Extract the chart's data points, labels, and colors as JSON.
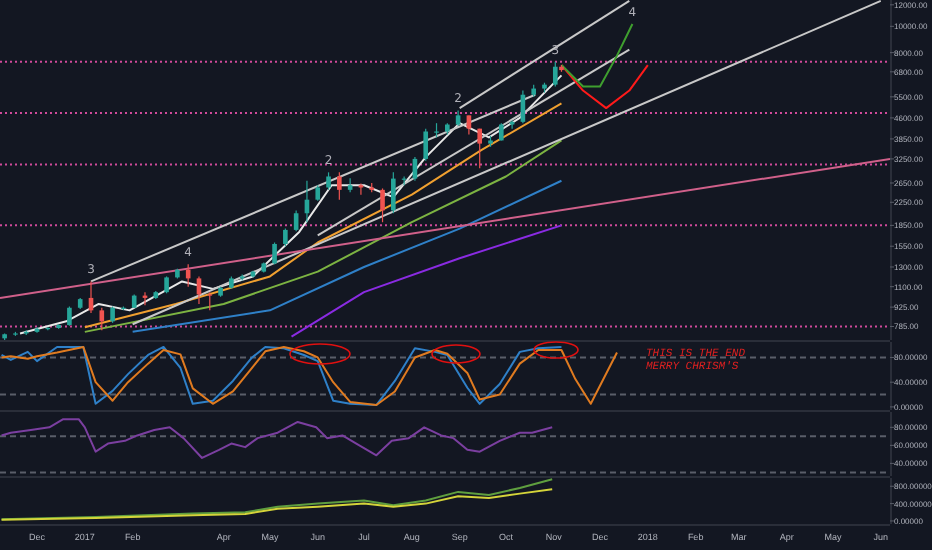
{
  "chart_data": [
    {
      "type": "candlestick",
      "log": true,
      "tick_labels": "y",
      "xlim": [
        "2016-11-07",
        "2018-06-07"
      ],
      "ylim": [
        700,
        12500
      ],
      "yticks": [
        {
          "value": 12000,
          "label": "12000.00"
        },
        {
          "value": 10000,
          "label": "10000.00"
        },
        {
          "value": 8000,
          "label": "8000.00"
        },
        {
          "value": 6800,
          "label": "6800.00"
        },
        {
          "value": 5500,
          "label": "5500.00"
        },
        {
          "value": 4600,
          "label": "4600.00"
        },
        {
          "value": 3850,
          "label": "3850.00"
        },
        {
          "value": 3250,
          "label": "3250.00"
        },
        {
          "value": 2650,
          "label": "2650.00"
        },
        {
          "value": 2250,
          "label": "2250.00"
        },
        {
          "value": 1850,
          "label": "1850.00"
        },
        {
          "value": 1550,
          "label": "1550.00"
        },
        {
          "value": 1300,
          "label": "1300.00"
        },
        {
          "value": 1100,
          "label": "1100.00"
        },
        {
          "value": 925,
          "label": "925.00"
        },
        {
          "value": 785,
          "label": "785.00"
        }
      ],
      "x": [
        "2016-11-10",
        "2016-11-17",
        "2016-11-24",
        "2016-12-01",
        "2016-12-08",
        "2016-12-15",
        "2016-12-22",
        "2016-12-29",
        "2017-01-05",
        "2017-01-12",
        "2017-01-19",
        "2017-01-26",
        "2017-02-02",
        "2017-02-09",
        "2017-02-16",
        "2017-02-23",
        "2017-03-02",
        "2017-03-09",
        "2017-03-16",
        "2017-03-23",
        "2017-03-30",
        "2017-04-06",
        "2017-04-13",
        "2017-04-20",
        "2017-04-27",
        "2017-05-04",
        "2017-05-11",
        "2017-05-18",
        "2017-05-25",
        "2017-06-01",
        "2017-06-08",
        "2017-06-15",
        "2017-06-22",
        "2017-06-29",
        "2017-07-06",
        "2017-07-13",
        "2017-07-20",
        "2017-07-27",
        "2017-08-03",
        "2017-08-10",
        "2017-08-17",
        "2017-08-24",
        "2017-08-31",
        "2017-09-07",
        "2017-09-14",
        "2017-09-21",
        "2017-09-28",
        "2017-10-05",
        "2017-10-12",
        "2017-10-19",
        "2017-10-26",
        "2017-11-02",
        "2017-11-06"
      ],
      "ohlc": [
        [
          710,
          740,
          700,
          735
        ],
        [
          735,
          750,
          725,
          740
        ],
        [
          740,
          760,
          730,
          750
        ],
        [
          750,
          780,
          745,
          770
        ],
        [
          770,
          780,
          760,
          775
        ],
        [
          775,
          800,
          770,
          795
        ],
        [
          795,
          930,
          790,
          920
        ],
        [
          920,
          1000,
          910,
          990
        ],
        [
          1000,
          1150,
          880,
          900
        ],
        [
          900,
          920,
          760,
          820
        ],
        [
          820,
          930,
          810,
          920
        ],
        [
          920,
          930,
          900,
          920
        ],
        [
          920,
          1030,
          920,
          1020
        ],
        [
          1020,
          1050,
          940,
          1000
        ],
        [
          1000,
          1060,
          990,
          1050
        ],
        [
          1050,
          1200,
          1040,
          1190
        ],
        [
          1190,
          1280,
          1180,
          1270
        ],
        [
          1270,
          1330,
          1100,
          1180
        ],
        [
          1180,
          1200,
          950,
          1030
        ],
        [
          1030,
          1050,
          900,
          1020
        ],
        [
          1020,
          1100,
          1010,
          1090
        ],
        [
          1090,
          1200,
          1080,
          1180
        ],
        [
          1180,
          1220,
          1160,
          1200
        ],
        [
          1200,
          1260,
          1190,
          1250
        ],
        [
          1250,
          1350,
          1240,
          1340
        ],
        [
          1340,
          1600,
          1330,
          1580
        ],
        [
          1580,
          1800,
          1550,
          1780
        ],
        [
          1780,
          2100,
          1760,
          2050
        ],
        [
          2050,
          2700,
          1900,
          2300
        ],
        [
          2300,
          2600,
          2280,
          2550
        ],
        [
          2550,
          2900,
          2500,
          2800
        ],
        [
          2800,
          2900,
          2300,
          2500
        ],
        [
          2500,
          2760,
          2450,
          2600
        ],
        [
          2600,
          2640,
          2400,
          2550
        ],
        [
          2550,
          2650,
          2450,
          2500
        ],
        [
          2500,
          2530,
          1900,
          2100
        ],
        [
          2100,
          2900,
          2050,
          2750
        ],
        [
          2750,
          2800,
          2600,
          2750
        ],
        [
          2750,
          3300,
          2700,
          3250
        ],
        [
          3250,
          4200,
          3200,
          4100
        ],
        [
          4100,
          4400,
          3900,
          4100
        ],
        [
          4100,
          4400,
          4000,
          4350
        ],
        [
          4350,
          4900,
          4300,
          4700
        ],
        [
          4700,
          4700,
          4000,
          4200
        ],
        [
          4200,
          4200,
          3000,
          3700
        ],
        [
          3700,
          3950,
          3600,
          3800
        ],
        [
          3800,
          4400,
          3800,
          4350
        ],
        [
          4350,
          4500,
          4200,
          4450
        ],
        [
          4450,
          5800,
          4400,
          5600
        ],
        [
          5600,
          6100,
          5500,
          5900
        ],
        [
          5900,
          6200,
          5700,
          6100
        ],
        [
          6100,
          7400,
          6000,
          7100
        ],
        [
          7100,
          7200,
          6800,
          6900
        ]
      ],
      "series": [
        {
          "type": "line",
          "color": "#e8e8e8",
          "x": [
            "2016-11-20",
            "2016-12-20",
            "2017-01-10",
            "2017-01-30",
            "2017-03-05",
            "2017-03-25",
            "2017-04-20",
            "2017-05-20",
            "2017-06-10",
            "2017-07-01",
            "2017-07-20",
            "2017-08-10",
            "2017-09-01",
            "2017-09-20",
            "2017-10-10",
            "2017-11-06"
          ],
          "values": [
            740,
            820,
            950,
            900,
            1150,
            1080,
            1200,
            1750,
            2600,
            2600,
            2350,
            3300,
            4400,
            3900,
            4600,
            6600
          ]
        },
        {
          "type": "line",
          "color": "#f0a030",
          "x": [
            "2017-01-01",
            "2017-03-01",
            "2017-05-01",
            "2017-06-01",
            "2017-08-01",
            "2017-09-15",
            "2017-11-06"
          ],
          "values": [
            780,
            950,
            1200,
            1600,
            2400,
            3500,
            5200
          ]
        },
        {
          "type": "line",
          "color": "#7cb342",
          "x": [
            "2017-01-01",
            "2017-04-01",
            "2017-06-01",
            "2017-08-01",
            "2017-10-01",
            "2017-11-06"
          ],
          "values": [
            750,
            950,
            1250,
            1900,
            2800,
            3800
          ]
        },
        {
          "type": "line",
          "color": "#2f80c8",
          "x": [
            "2017-02-01",
            "2017-05-01",
            "2017-07-01",
            "2017-09-01",
            "2017-11-06"
          ],
          "values": [
            750,
            900,
            1300,
            1800,
            2700
          ]
        },
        {
          "type": "line",
          "color": "#8a2be2",
          "x": [
            "2017-05-15",
            "2017-07-01",
            "2017-09-01",
            "2017-11-06"
          ],
          "values": [
            720,
            1050,
            1400,
            1850
          ]
        },
        {
          "type": "line",
          "color": "#c8c8c8",
          "x": [
            "2017-01-05",
            "2017-10-20"
          ],
          "values": [
            1150,
            5600
          ]
        },
        {
          "type": "line",
          "color": "#c8c8c8",
          "x": [
            "2017-09-01",
            "2017-12-20"
          ],
          "values": [
            5000,
            12400
          ]
        },
        {
          "type": "line",
          "color": "#c8c8c8",
          "x": [
            "2017-06-01",
            "2017-12-20"
          ],
          "values": [
            1700,
            8200
          ]
        },
        {
          "type": "line",
          "color": "#c8c8c8",
          "x": [
            "2017-02-01",
            "2018-06-01"
          ],
          "values": [
            800,
            12400
          ]
        },
        {
          "type": "line",
          "color": "#d0608a",
          "x": [
            "2016-11-07",
            "2018-06-07"
          ],
          "values": [
            1000,
            3250
          ]
        },
        {
          "type": "line",
          "color": "#ff1a1a",
          "x": [
            "2017-11-06",
            "2017-11-20",
            "2017-12-05",
            "2017-12-20",
            "2018-01-01"
          ],
          "values": [
            7200,
            5800,
            5000,
            5800,
            7200
          ]
        },
        {
          "type": "line",
          "color": "#3f9f2f",
          "x": [
            "2017-11-06",
            "2017-11-20",
            "2017-12-01",
            "2017-12-12",
            "2017-12-22"
          ],
          "values": [
            7200,
            6000,
            6000,
            7800,
            10200
          ]
        }
      ],
      "ref_lines": [
        {
          "axis": "y",
          "value": 7400,
          "color": "#d04a9a",
          "line_style": "dotted"
        },
        {
          "axis": "y",
          "value": 4800,
          "color": "#d04a9a",
          "line_style": "dotted"
        },
        {
          "axis": "y",
          "value": 3100,
          "color": "#d04a9a",
          "line_style": "dotted"
        },
        {
          "axis": "y",
          "value": 1850,
          "color": "#d04a9a",
          "line_style": "dotted"
        },
        {
          "axis": "y",
          "value": 785,
          "color": "#d04a9a",
          "line_style": "dotted"
        }
      ],
      "annotations": [
        {
          "text": "3",
          "x": "2017-01-05",
          "y": 1150
        },
        {
          "text": "4",
          "x": "2017-03-09",
          "y": 1330
        },
        {
          "text": "2",
          "x": "2017-06-08",
          "y": 2900
        },
        {
          "text": "2",
          "x": "2017-08-31",
          "y": 4900
        },
        {
          "text": "3",
          "x": "2017-11-02",
          "y": 7400
        },
        {
          "text": "4",
          "x": "2017-12-22",
          "y": 10200
        }
      ]
    },
    {
      "type": "line",
      "tick_labels": "y",
      "xlim": [
        "2016-11-07",
        "2018-06-07"
      ],
      "ylim": [
        -5,
        105
      ],
      "yticks": [
        {
          "value": 80,
          "label": "80.00000"
        },
        {
          "value": 40,
          "label": "40.00000"
        },
        {
          "value": 0,
          "label": "0.00000"
        }
      ],
      "ref_lines": [
        {
          "axis": "y",
          "value": 80,
          "color": "#5a5e69",
          "line_style": "dashed"
        },
        {
          "axis": "y",
          "value": 20,
          "color": "#5a5e69",
          "line_style": "dashed"
        }
      ],
      "series": [
        {
          "color": "#2f80c8",
          "x": [
            "2016-11-08",
            "2016-11-14",
            "2016-11-25",
            "2016-12-01",
            "2016-12-14",
            "2016-12-31",
            "2017-01-08",
            "2017-01-19",
            "2017-01-29",
            "2017-02-11",
            "2017-02-21",
            "2017-03-04",
            "2017-03-12",
            "2017-03-25",
            "2017-04-07",
            "2017-04-19",
            "2017-04-28",
            "2017-05-10",
            "2017-05-23",
            "2017-06-01",
            "2017-06-11",
            "2017-06-22",
            "2017-07-09",
            "2017-07-21",
            "2017-08-03",
            "2017-08-16",
            "2017-08-24",
            "2017-09-06",
            "2017-09-14",
            "2017-09-27",
            "2017-10-10",
            "2017-10-22",
            "2017-11-06"
          ],
          "values": [
            84,
            76,
            89,
            74,
            97,
            97,
            5,
            26,
            53,
            84,
            97,
            63,
            5,
            10,
            42,
            79,
            97,
            95,
            84,
            74,
            10,
            5,
            3,
            42,
            95,
            89,
            84,
            31,
            5,
            37,
            89,
            95,
            97
          ]
        },
        {
          "color": "#e07b20",
          "x": [
            "2016-11-08",
            "2016-11-14",
            "2016-11-25",
            "2016-12-01",
            "2016-12-14",
            "2016-12-31",
            "2017-01-08",
            "2017-01-19",
            "2017-01-29",
            "2017-02-11",
            "2017-02-21",
            "2017-03-04",
            "2017-03-12",
            "2017-03-25",
            "2017-04-07",
            "2017-04-19",
            "2017-04-28",
            "2017-05-10",
            "2017-05-23",
            "2017-06-01",
            "2017-06-11",
            "2017-06-22",
            "2017-07-09",
            "2017-07-21",
            "2017-08-03",
            "2017-08-16",
            "2017-08-24",
            "2017-09-06",
            "2017-09-14",
            "2017-09-27",
            "2017-10-10",
            "2017-10-22",
            "2017-11-06",
            "2017-11-15",
            "2017-11-25",
            "2017-12-12"
          ],
          "values": [
            80,
            82,
            78,
            82,
            88,
            97,
            40,
            10,
            40,
            70,
            92,
            85,
            30,
            5,
            25,
            62,
            90,
            97,
            90,
            80,
            40,
            8,
            3,
            25,
            80,
            92,
            86,
            55,
            12,
            20,
            70,
            92,
            92,
            45,
            5,
            88
          ]
        }
      ],
      "annotations": [
        "THIS IS THE END",
        "MERRY CHRISM'S"
      ]
    },
    {
      "type": "line",
      "tick_labels": "y",
      "xlim": [
        "2016-11-07",
        "2018-06-07"
      ],
      "ylim": [
        26,
        97
      ],
      "yticks": [
        {
          "value": 80,
          "label": "80.00000"
        },
        {
          "value": 60,
          "label": "60.00000"
        },
        {
          "value": 40,
          "label": "40.00000"
        }
      ],
      "ref_lines": [
        {
          "axis": "y",
          "value": 70,
          "color": "#5a5e69",
          "line_style": "dashed"
        },
        {
          "axis": "y",
          "value": 30,
          "color": "#5a5e69",
          "line_style": "dashed"
        }
      ],
      "series": [
        {
          "color": "#7b3fa0",
          "x": [
            "2016-11-08",
            "2016-11-14",
            "2016-11-27",
            "2016-12-09",
            "2016-12-18",
            "2016-12-28",
            "2017-01-01",
            "2017-01-08",
            "2017-01-16",
            "2017-01-27",
            "2017-02-04",
            "2017-02-15",
            "2017-02-25",
            "2017-03-06",
            "2017-03-18",
            "2017-03-29",
            "2017-04-06",
            "2017-04-15",
            "2017-04-23",
            "2017-05-06",
            "2017-05-19",
            "2017-05-31",
            "2017-06-07",
            "2017-06-17",
            "2017-06-26",
            "2017-07-09",
            "2017-07-19",
            "2017-07-30",
            "2017-08-09",
            "2017-08-20",
            "2017-08-28",
            "2017-09-06",
            "2017-09-14",
            "2017-09-27",
            "2017-10-10",
            "2017-10-18",
            "2017-10-31"
          ],
          "values": [
            71,
            74,
            77,
            80,
            89,
            89,
            80,
            53,
            62,
            65,
            71,
            77,
            80,
            68,
            46,
            55,
            62,
            58,
            68,
            74,
            86,
            80,
            68,
            71,
            62,
            49,
            65,
            68,
            80,
            71,
            68,
            55,
            53,
            65,
            74,
            74,
            80
          ]
        }
      ]
    },
    {
      "type": "line",
      "xlim": [
        "2016-11-07",
        "2018-06-07"
      ],
      "ylim": [
        -70,
        990
      ],
      "yticks": [
        {
          "value": 800,
          "label": "800.00000"
        },
        {
          "value": 400,
          "label": "400.00000"
        },
        {
          "value": 0,
          "label": "0.00000"
        }
      ],
      "xticks": [
        {
          "value": "2016-12-01",
          "label": "Dec"
        },
        {
          "value": "2017-01-01",
          "label": "2017"
        },
        {
          "value": "2017-02-01",
          "label": "Feb"
        },
        {
          "value": "2017-04-01",
          "label": "Apr"
        },
        {
          "value": "2017-05-01",
          "label": "May"
        },
        {
          "value": "2017-06-01",
          "label": "Jun"
        },
        {
          "value": "2017-07-01",
          "label": "Jul"
        },
        {
          "value": "2017-08-01",
          "label": "Aug"
        },
        {
          "value": "2017-09-01",
          "label": "Sep"
        },
        {
          "value": "2017-10-01",
          "label": "Oct"
        },
        {
          "value": "2017-11-01",
          "label": "Nov"
        },
        {
          "value": "2017-12-01",
          "label": "Dec"
        },
        {
          "value": "2018-01-01",
          "label": "2018"
        },
        {
          "value": "2018-02-01",
          "label": "Feb"
        },
        {
          "value": "2018-03-01",
          "label": "Mar"
        },
        {
          "value": "2018-04-01",
          "label": "Apr"
        },
        {
          "value": "2018-05-01",
          "label": "May"
        },
        {
          "value": "2018-06-01",
          "label": "Jun"
        }
      ],
      "series": [
        {
          "color": "#5f9f3f",
          "x": [
            "2016-11-08",
            "2017-01-08",
            "2017-03-12",
            "2017-04-15",
            "2017-05-06",
            "2017-06-01",
            "2017-07-01",
            "2017-07-20",
            "2017-08-10",
            "2017-08-31",
            "2017-09-20",
            "2017-10-10",
            "2017-10-31"
          ],
          "values": [
            40,
            90,
            170,
            200,
            330,
            400,
            470,
            360,
            470,
            670,
            600,
            760,
            960
          ]
        },
        {
          "color": "#d4d43a",
          "x": [
            "2016-11-08",
            "2017-01-08",
            "2017-03-12",
            "2017-04-15",
            "2017-05-06",
            "2017-06-01",
            "2017-07-01",
            "2017-07-20",
            "2017-08-10",
            "2017-08-31",
            "2017-09-20",
            "2017-10-10",
            "2017-10-31"
          ],
          "values": [
            30,
            70,
            130,
            160,
            280,
            330,
            400,
            330,
            400,
            570,
            530,
            630,
            730
          ]
        }
      ]
    }
  ]
}
